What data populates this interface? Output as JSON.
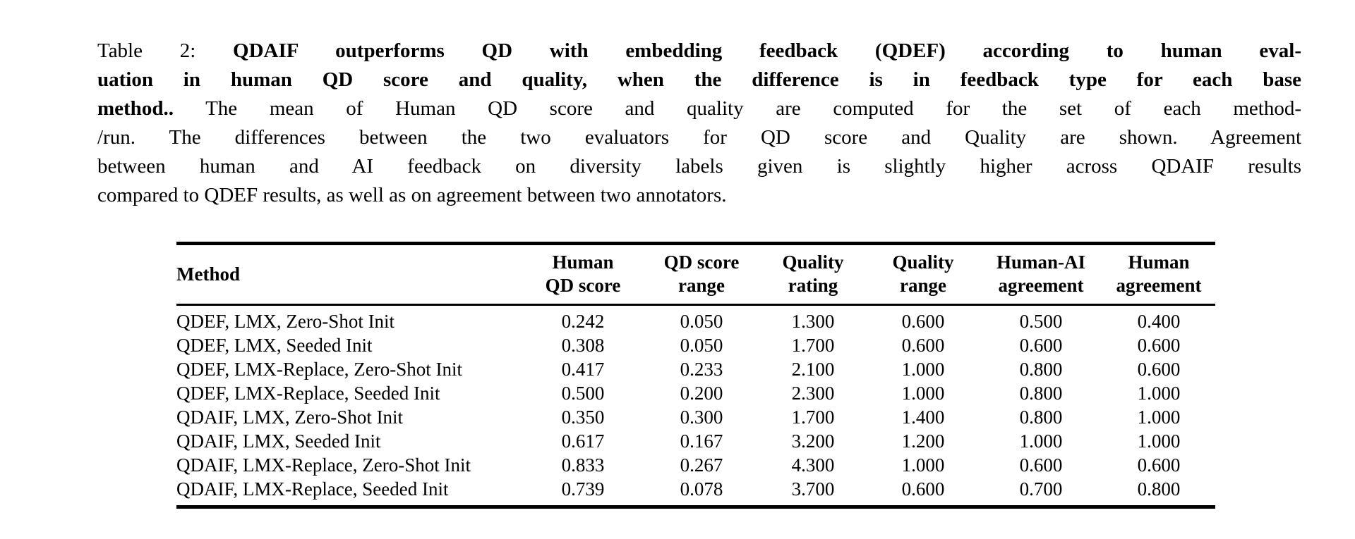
{
  "page": {
    "background_color": "#ffffff",
    "text_color": "#000000",
    "kind": "academic-paper-table-screenshot"
  },
  "caption": {
    "label": "Table 2:",
    "lines": [
      {
        "last": false,
        "segments": [
          {
            "text": "Table 2: ",
            "bold": false
          },
          {
            "text": "QDAIF outperforms QD with embedding feedback (QDEF) according to human eval-",
            "bold": true
          }
        ]
      },
      {
        "last": false,
        "segments": [
          {
            "text": "uation in human QD score and quality, when the difference is in feedback type for each base",
            "bold": true
          }
        ]
      },
      {
        "last": false,
        "segments": [
          {
            "text": "method..",
            "bold": true
          },
          {
            "text": "  The mean of Human QD score and quality are computed for the set of each method-",
            "bold": false
          }
        ]
      },
      {
        "last": false,
        "segments": [
          {
            "text": "/run. The differences between the two evaluators for QD score and Quality are shown. Agreement",
            "bold": false
          }
        ]
      },
      {
        "last": false,
        "segments": [
          {
            "text": "between human and AI feedback on diversity labels given is slightly higher across QDAIF results",
            "bold": false
          }
        ]
      },
      {
        "last": true,
        "segments": [
          {
            "text": "compared to QDEF results, as well as on agreement between two annotators.",
            "bold": false
          }
        ]
      }
    ]
  },
  "table": {
    "columns": [
      {
        "label": "Method",
        "align": "left"
      },
      {
        "label": "Human\nQD score",
        "align": "center"
      },
      {
        "label": "QD score\nrange",
        "align": "center"
      },
      {
        "label": "Quality\nrating",
        "align": "center"
      },
      {
        "label": "Quality\nrange",
        "align": "center"
      },
      {
        "label": "Human-AI\nagreement",
        "align": "center"
      },
      {
        "label": "Human\nagreement",
        "align": "center"
      }
    ],
    "rows": [
      {
        "method": "QDEF, LMX, Zero-Shot Init",
        "values": [
          "0.242",
          "0.050",
          "1.300",
          "0.600",
          "0.500",
          "0.400"
        ]
      },
      {
        "method": "QDEF, LMX, Seeded Init",
        "values": [
          "0.308",
          "0.050",
          "1.700",
          "0.600",
          "0.600",
          "0.600"
        ]
      },
      {
        "method": "QDEF, LMX-Replace, Zero-Shot Init",
        "values": [
          "0.417",
          "0.233",
          "2.100",
          "1.000",
          "0.800",
          "0.600"
        ]
      },
      {
        "method": "QDEF, LMX-Replace, Seeded Init",
        "values": [
          "0.500",
          "0.200",
          "2.300",
          "1.000",
          "0.800",
          "1.000"
        ]
      },
      {
        "method": "QDAIF, LMX, Zero-Shot Init",
        "values": [
          "0.350",
          "0.300",
          "1.700",
          "1.400",
          "0.800",
          "1.000"
        ]
      },
      {
        "method": "QDAIF, LMX, Seeded Init",
        "values": [
          "0.617",
          "0.167",
          "3.200",
          "1.200",
          "1.000",
          "1.000"
        ]
      },
      {
        "method": "QDAIF, LMX-Replace, Zero-Shot Init",
        "values": [
          "0.833",
          "0.267",
          "4.300",
          "1.000",
          "0.600",
          "0.600"
        ]
      },
      {
        "method": "QDAIF, LMX-Replace, Seeded Init",
        "values": [
          "0.739",
          "0.078",
          "3.700",
          "0.600",
          "0.700",
          "0.800"
        ]
      }
    ]
  }
}
